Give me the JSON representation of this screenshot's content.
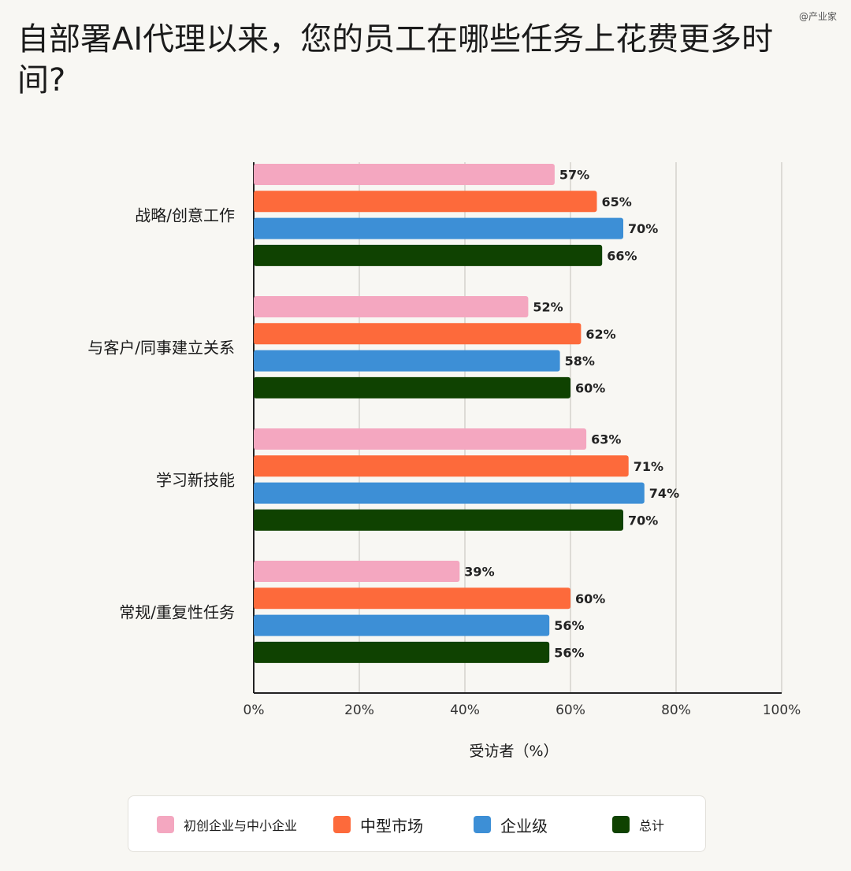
{
  "watermark": "@产业家",
  "chart_data": {
    "type": "bar",
    "orientation": "horizontal",
    "title": "自部署AI代理以来，您的员工在哪些任务上花费更多时间?",
    "xlabel": "受访者（%）",
    "ylabel": "",
    "xlim": [
      0,
      100
    ],
    "x_ticks": [
      "0%",
      "20%",
      "40%",
      "60%",
      "80%",
      "100%"
    ],
    "grid": true,
    "legend_position": "bottom",
    "categories": [
      "战略/创意工作",
      "与客户/同事建立关系",
      "学习新技能",
      "常规/重复性任务"
    ],
    "series": [
      {
        "name": "初创企业与中小企业",
        "color": "#f4a7c0",
        "values": [
          57,
          52,
          63,
          39
        ],
        "labels": [
          "57%",
          "52%",
          "63%",
          "39%"
        ]
      },
      {
        "name": "中型市场",
        "color": "#fd6a3b",
        "values": [
          65,
          62,
          71,
          60
        ],
        "labels": [
          "65%",
          "62%",
          "71%",
          "60%"
        ]
      },
      {
        "name": "企业级",
        "color": "#3d8fd6",
        "values": [
          70,
          58,
          74,
          56
        ],
        "labels": [
          "70%",
          "58%",
          "74%",
          "56%"
        ]
      },
      {
        "name": "总计",
        "color": "#0f4201",
        "values": [
          66,
          60,
          70,
          56
        ],
        "labels": [
          "66%",
          "60%",
          "70%",
          "56%"
        ]
      }
    ]
  }
}
